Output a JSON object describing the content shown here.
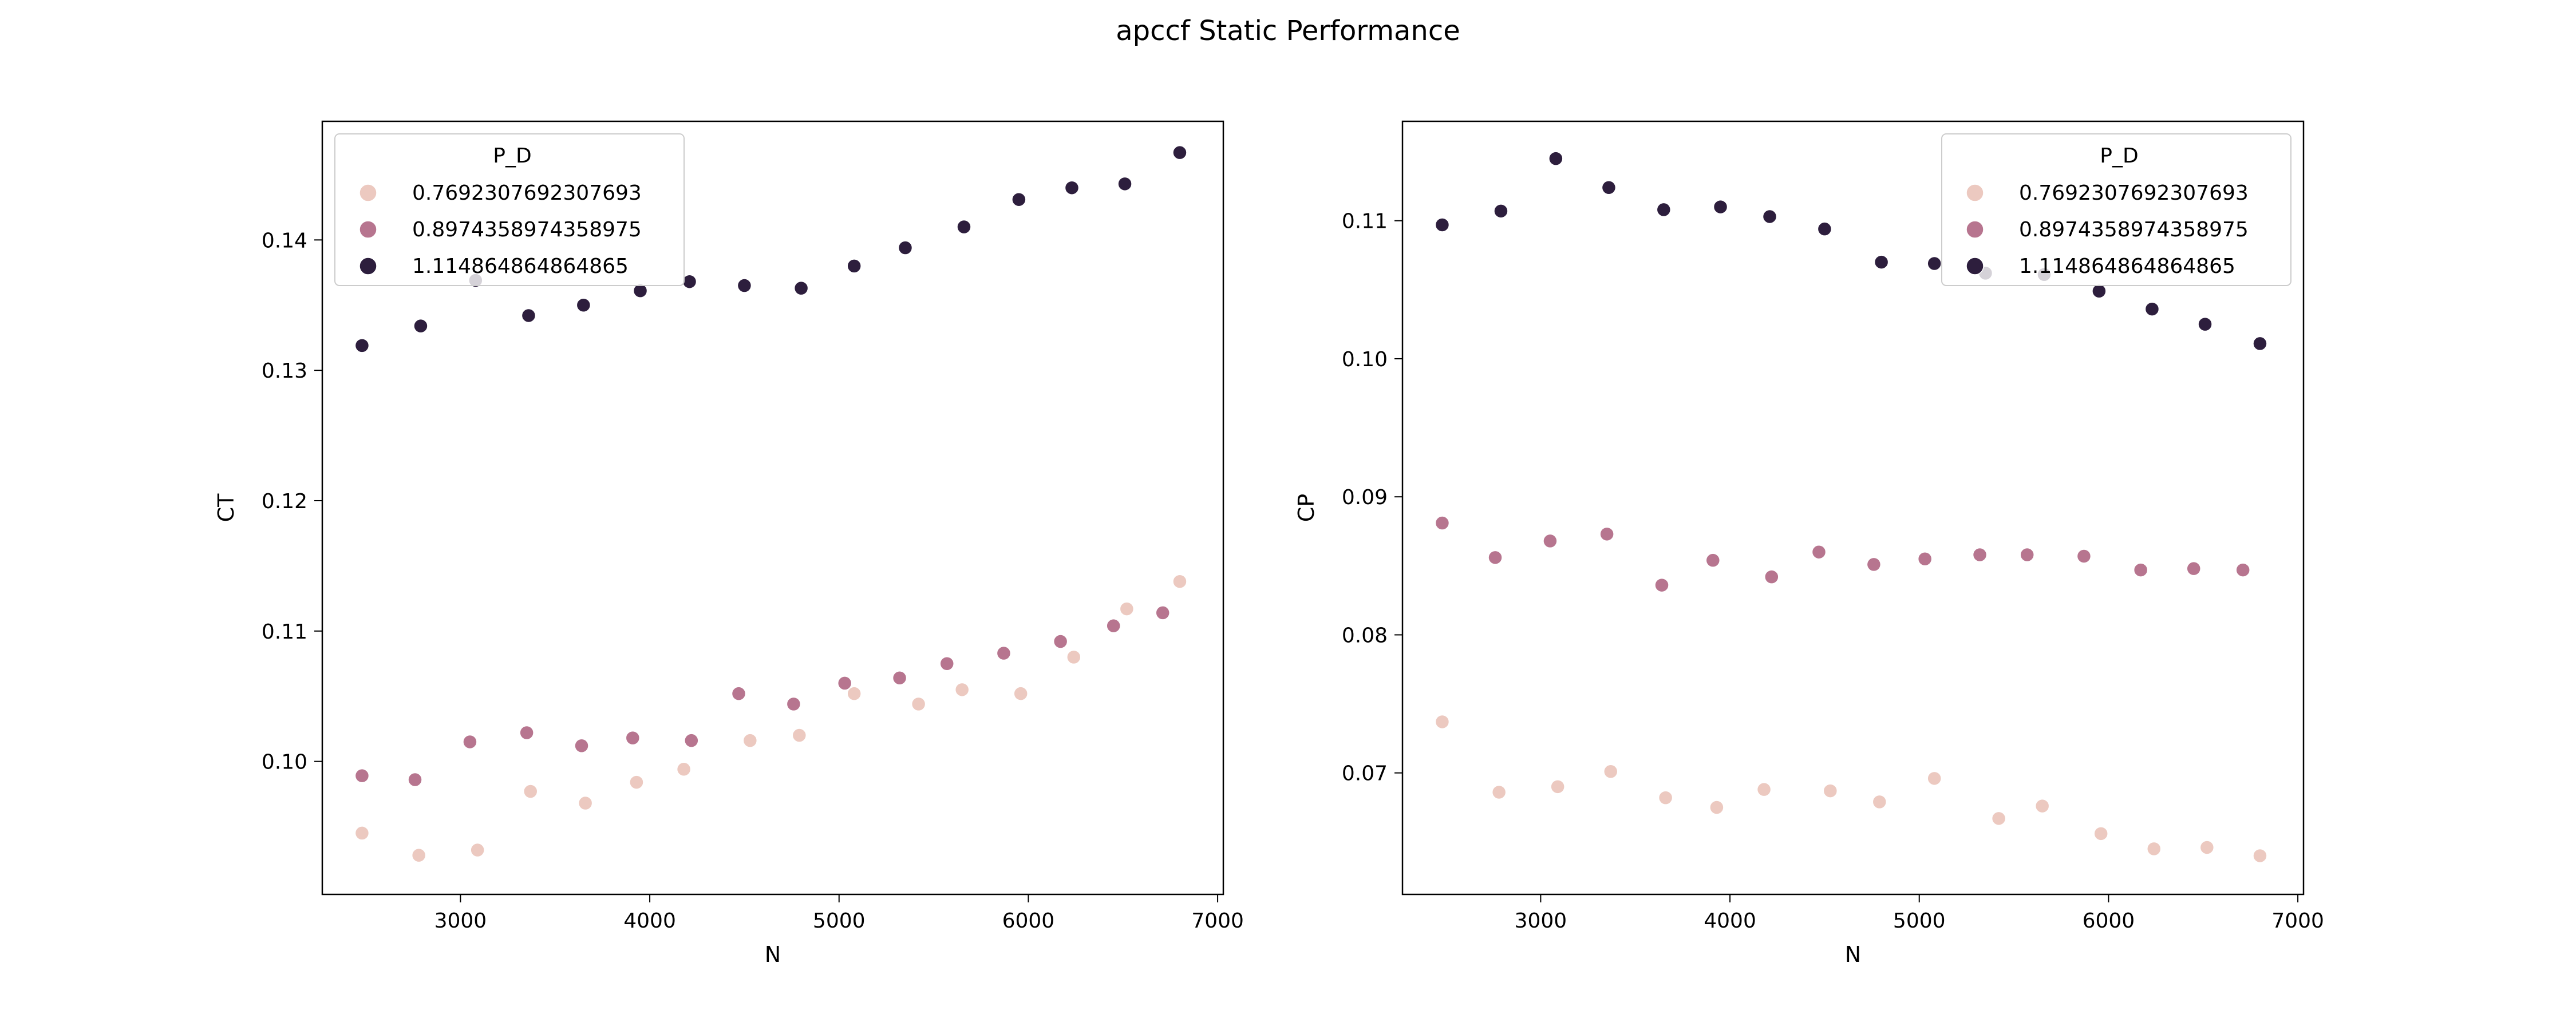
{
  "suptitle": "apccf Static Performance",
  "colors": {
    "0.7692307692307693": "#ecc9c0",
    "0.8974358974358975": "#b7758f",
    "1.114864864864865": "#2d1e3d"
  },
  "chart_data": [
    {
      "type": "scatter",
      "xlabel": "N",
      "ylabel": "CT",
      "xlim": [
        2270,
        7030
      ],
      "ylim": [
        0.0898,
        0.1491
      ],
      "xticks": [
        3000,
        4000,
        5000,
        6000,
        7000
      ],
      "yticks": [
        0.1,
        0.11,
        0.12,
        0.13,
        0.14
      ],
      "legend": {
        "title": "P_D",
        "location": "upper left"
      },
      "series": [
        {
          "name": "0.7692307692307693",
          "points": [
            [
              2480,
              0.0945
            ],
            [
              2780,
              0.0928
            ],
            [
              3090,
              0.0932
            ],
            [
              3370,
              0.0977
            ],
            [
              3660,
              0.0968
            ],
            [
              3930,
              0.0984
            ],
            [
              4180,
              0.0994
            ],
            [
              4530,
              0.1016
            ],
            [
              4790,
              0.102
            ],
            [
              5080,
              0.1052
            ],
            [
              5420,
              0.1044
            ],
            [
              5650,
              0.1055
            ],
            [
              5960,
              0.1052
            ],
            [
              6240,
              0.108
            ],
            [
              6520,
              0.1117
            ],
            [
              6800,
              0.1138
            ]
          ]
        },
        {
          "name": "0.8974358974358975",
          "points": [
            [
              2480,
              0.0989
            ],
            [
              2760,
              0.0986
            ],
            [
              3050,
              0.1015
            ],
            [
              3350,
              0.1022
            ],
            [
              3640,
              0.1012
            ],
            [
              3910,
              0.1018
            ],
            [
              4220,
              0.1016
            ],
            [
              4470,
              0.1052
            ],
            [
              4760,
              0.1044
            ],
            [
              5030,
              0.106
            ],
            [
              5320,
              0.1064
            ],
            [
              5570,
              0.1075
            ],
            [
              5870,
              0.1083
            ],
            [
              6170,
              0.1092
            ],
            [
              6450,
              0.1104
            ],
            [
              6710,
              0.1114
            ]
          ]
        },
        {
          "name": "1.114864864864865",
          "points": [
            [
              2480,
              0.1319
            ],
            [
              2790,
              0.1334
            ],
            [
              3080,
              0.1369
            ],
            [
              3360,
              0.1342
            ],
            [
              3650,
              0.135
            ],
            [
              3950,
              0.1361
            ],
            [
              4210,
              0.1368
            ],
            [
              4500,
              0.1365
            ],
            [
              4800,
              0.1363
            ],
            [
              5080,
              0.138
            ],
            [
              5350,
              0.1394
            ],
            [
              5660,
              0.141
            ],
            [
              5950,
              0.1431
            ],
            [
              6230,
              0.144
            ],
            [
              6510,
              0.1443
            ],
            [
              6800,
              0.1467
            ]
          ]
        }
      ]
    },
    {
      "type": "scatter",
      "xlabel": "N",
      "ylabel": "CP",
      "xlim": [
        2270,
        7030
      ],
      "ylim": [
        0.0612,
        0.1172
      ],
      "xticks": [
        3000,
        4000,
        5000,
        6000,
        7000
      ],
      "yticks": [
        0.07,
        0.08,
        0.09,
        0.1,
        0.11
      ],
      "legend": {
        "title": "P_D",
        "location": "upper right"
      },
      "series": [
        {
          "name": "0.7692307692307693",
          "points": [
            [
              2480,
              0.0737
            ],
            [
              2780,
              0.0686
            ],
            [
              3090,
              0.069
            ],
            [
              3370,
              0.0701
            ],
            [
              3660,
              0.0682
            ],
            [
              3930,
              0.0675
            ],
            [
              4180,
              0.0688
            ],
            [
              4530,
              0.0687
            ],
            [
              4790,
              0.0679
            ],
            [
              5080,
              0.0696
            ],
            [
              5420,
              0.0667
            ],
            [
              5650,
              0.0676
            ],
            [
              5960,
              0.0656
            ],
            [
              6240,
              0.0645
            ],
            [
              6520,
              0.0646
            ],
            [
              6800,
              0.064
            ]
          ]
        },
        {
          "name": "0.8974358974358975",
          "points": [
            [
              2480,
              0.0881
            ],
            [
              2760,
              0.0856
            ],
            [
              3050,
              0.0868
            ],
            [
              3350,
              0.0873
            ],
            [
              3640,
              0.0836
            ],
            [
              3910,
              0.0854
            ],
            [
              4220,
              0.0842
            ],
            [
              4470,
              0.086
            ],
            [
              4760,
              0.0851
            ],
            [
              5030,
              0.0855
            ],
            [
              5320,
              0.0858
            ],
            [
              5570,
              0.0858
            ],
            [
              5870,
              0.0857
            ],
            [
              6170,
              0.0847
            ],
            [
              6450,
              0.0848
            ],
            [
              6710,
              0.0847
            ]
          ]
        },
        {
          "name": "1.114864864864865",
          "points": [
            [
              2480,
              0.1097
            ],
            [
              2790,
              0.1107
            ],
            [
              3080,
              0.1145
            ],
            [
              3360,
              0.1124
            ],
            [
              3650,
              0.1108
            ],
            [
              3950,
              0.111
            ],
            [
              4210,
              0.1103
            ],
            [
              4500,
              0.1094
            ],
            [
              4800,
              0.107
            ],
            [
              5080,
              0.1069
            ],
            [
              5350,
              0.1062
            ],
            [
              5660,
              0.1061
            ],
            [
              5950,
              0.1049
            ],
            [
              6230,
              0.1036
            ],
            [
              6510,
              0.1025
            ],
            [
              6800,
              0.1011
            ]
          ]
        }
      ]
    }
  ]
}
